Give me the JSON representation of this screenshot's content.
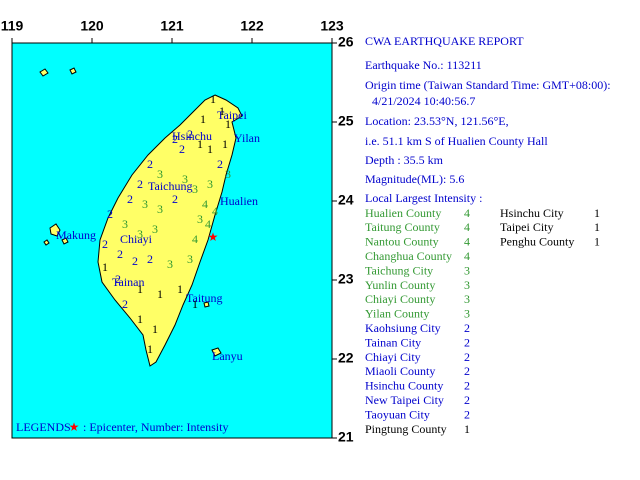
{
  "map": {
    "lon_ticks": [
      119,
      120,
      121,
      122,
      123
    ],
    "lat_ticks": [
      26,
      25,
      24,
      23,
      22,
      21
    ],
    "cities": [
      "Taipei",
      "Hsinchu",
      "Yilan",
      "Taichung",
      "Hualien",
      "Makung",
      "Chiayi",
      "Tainan",
      "Taitung",
      "Lanyu"
    ],
    "legend_title": "LEGENDS",
    "legend_text": ": Epicenter, Number: Intensity",
    "stations": [
      1,
      1,
      1,
      1,
      2,
      2,
      2,
      1,
      1,
      1,
      2,
      3,
      2,
      3,
      3,
      3,
      2,
      3,
      2,
      3,
      3,
      2,
      4,
      4,
      3,
      2,
      3,
      3,
      3,
      4,
      4,
      2,
      2,
      2,
      2,
      3,
      3,
      1,
      2,
      1,
      1,
      1,
      2,
      1,
      1,
      1,
      1
    ]
  },
  "report": {
    "title": "CWA EARTHQUAKE REPORT",
    "lines": [
      "Earthquake No.: 113211",
      "Origin time (Taiwan Standard Time: GMT+08:00):",
      "4/21/2024 10:40:56.7",
      "Location: 23.53°N, 121.56°E,",
      "i.e. 51.1 km S of Hualien County Hall",
      "Depth : 35.5 km",
      "Magnitude(ML): 5.6",
      "Local Largest Intensity :"
    ],
    "intensities": [
      {
        "name": "Hualien County",
        "value": 4
      },
      {
        "name": "Taitung County",
        "value": 4
      },
      {
        "name": "Nantou County",
        "value": 4
      },
      {
        "name": "Changhua County",
        "value": 4
      },
      {
        "name": "Taichung City",
        "value": 3
      },
      {
        "name": "Yunlin County",
        "value": 3
      },
      {
        "name": "Chiayi County",
        "value": 3
      },
      {
        "name": "Yilan County",
        "value": 3
      },
      {
        "name": "Kaohsiung City",
        "value": 2
      },
      {
        "name": "Tainan City",
        "value": 2
      },
      {
        "name": "Chiayi City",
        "value": 2
      },
      {
        "name": "Miaoli County",
        "value": 2
      },
      {
        "name": "Hsinchu County",
        "value": 2
      },
      {
        "name": "New Taipei City",
        "value": 2
      },
      {
        "name": "Taoyuan City",
        "value": 2
      },
      {
        "name": "Pingtung County",
        "value": 1
      },
      {
        "name": "Hsinchu City",
        "value": 1
      },
      {
        "name": "Taipei City",
        "value": 1
      },
      {
        "name": "Penghu County",
        "value": 1
      }
    ]
  }
}
